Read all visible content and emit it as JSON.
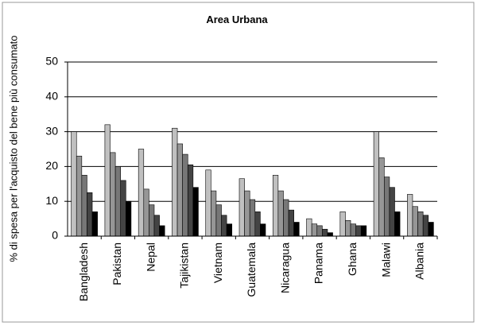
{
  "chart_data": {
    "type": "bar",
    "title": "Area Urbana",
    "y_label": "% di spesa per l'acquisto del bene più consumato",
    "categories": [
      "Bangladesh",
      "Pakistan",
      "Nepal",
      "Tajikistan",
      "Vietnam",
      "Guatemala",
      "Nicaragua",
      "Panama",
      "Ghana",
      "Malawi",
      "Albania"
    ],
    "series": [
      {
        "color": "#c0c0c0",
        "values": [
          30,
          32,
          25,
          31,
          19,
          16.5,
          17.5,
          5,
          7,
          30,
          12
        ]
      },
      {
        "color": "#969696",
        "values": [
          23,
          24,
          13.5,
          26.5,
          13,
          13,
          13,
          3.5,
          4.5,
          22.5,
          8.5
        ]
      },
      {
        "color": "#777777",
        "values": [
          17.5,
          20,
          9,
          23.5,
          9,
          10.5,
          10.5,
          3,
          3.5,
          17,
          7
        ]
      },
      {
        "color": "#444444",
        "values": [
          12.5,
          16,
          6,
          20.5,
          6,
          7,
          7.5,
          2,
          3,
          14,
          6
        ]
      },
      {
        "color": "#000000",
        "values": [
          7,
          10,
          3,
          14,
          3.5,
          3.5,
          4,
          1,
          3,
          7,
          4
        ]
      }
    ],
    "ylim": [
      0,
      50
    ],
    "yticks": [
      0,
      10,
      20,
      30,
      40,
      50
    ],
    "grid": true
  }
}
